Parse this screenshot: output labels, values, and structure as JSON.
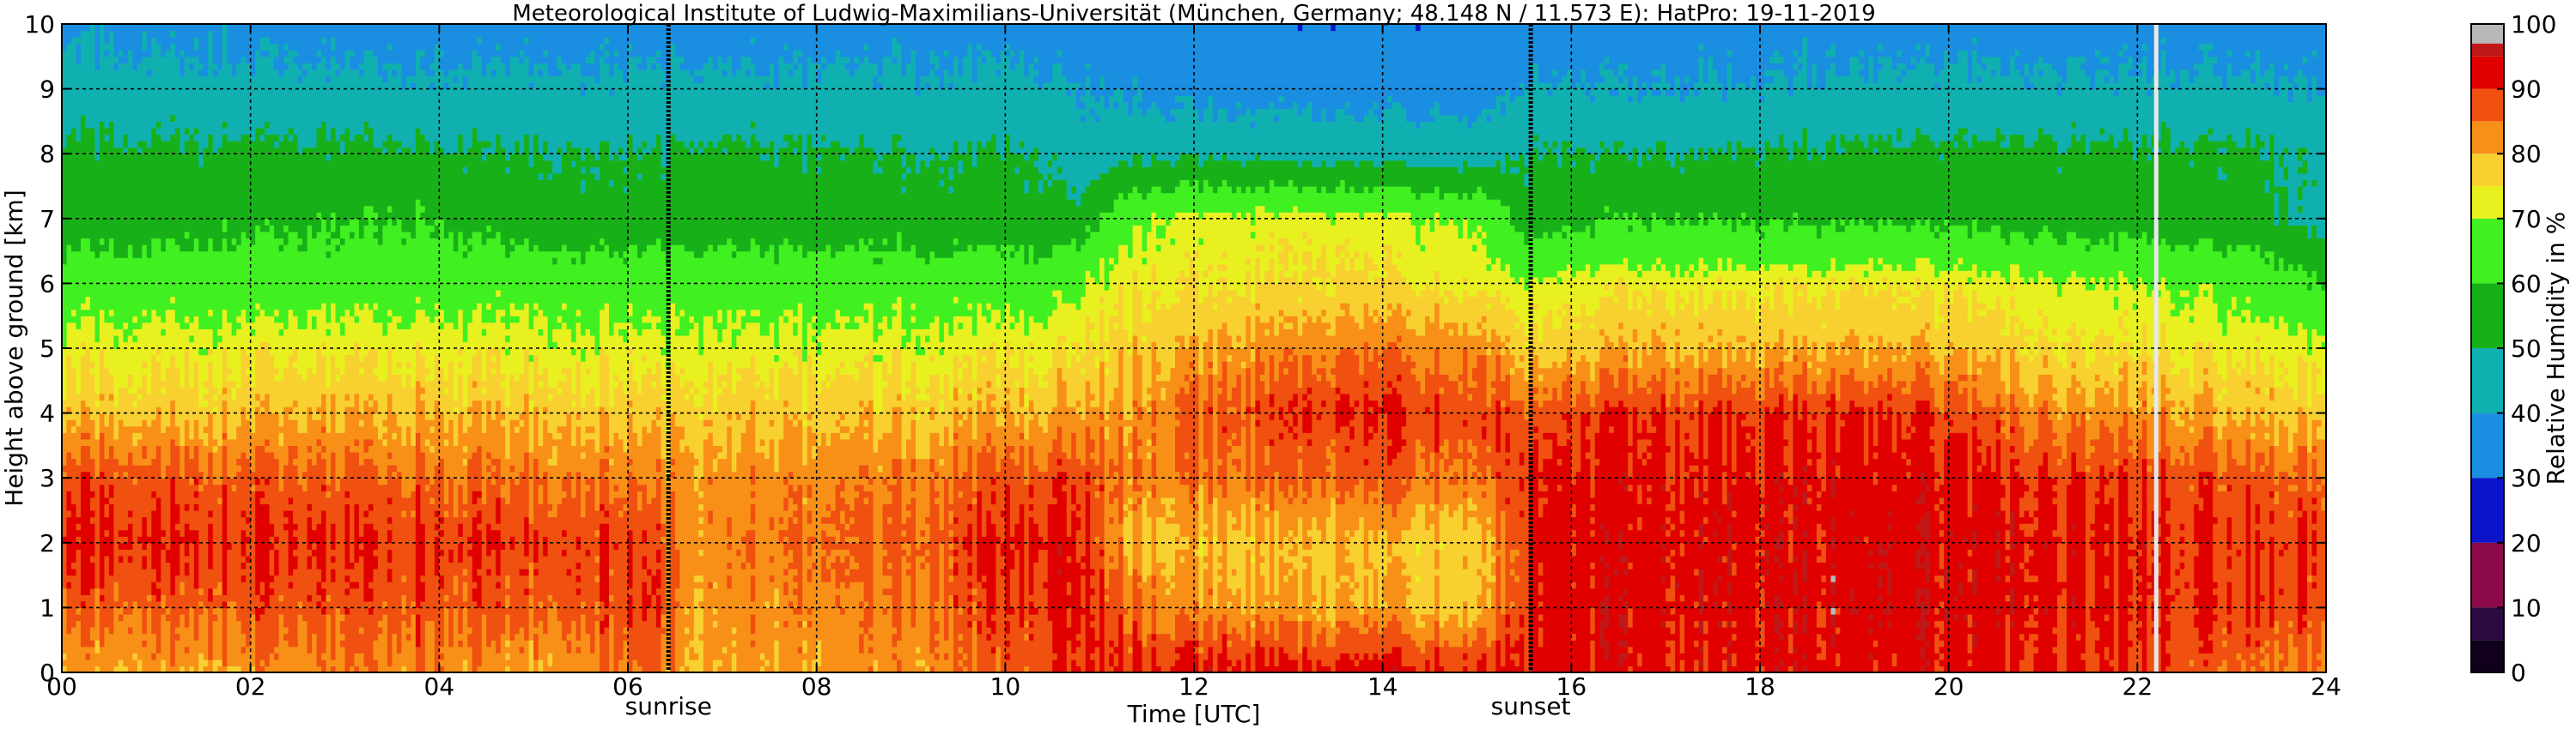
{
  "chart_data": {
    "type": "heatmap",
    "title": "Meteorological Institute of Ludwig-Maximilians-Universität (München, Germany; 48.148 N / 11.573 E):    HatPro: 19-11-2019",
    "xlabel": "Time [UTC]",
    "ylabel": "Height above ground [km]",
    "xlim": [
      0,
      24
    ],
    "ylim": [
      0,
      10
    ],
    "x_ticks": [
      "00",
      "02",
      "04",
      "06",
      "08",
      "10",
      "12",
      "14",
      "16",
      "18",
      "20",
      "22",
      "24"
    ],
    "y_ticks": [
      "0",
      "1",
      "2",
      "3",
      "4",
      "5",
      "6",
      "7",
      "8",
      "9",
      "10"
    ],
    "grid": true,
    "colorbar": {
      "label": "Relative Humidity in %",
      "range": [
        0,
        100
      ],
      "ticks": [
        "0",
        "10",
        "20",
        "30",
        "40",
        "50",
        "60",
        "70",
        "80",
        "90",
        "100"
      ],
      "colors": {
        "0-5": "#10001c",
        "5-10": "#2a0a40",
        "10-20": "#8c0a4a",
        "20-30": "#0a14c8",
        "30-40": "#1a8ee0",
        "40-50": "#10b0b0",
        "50-60": "#18b018",
        "60-70": "#40f020",
        "70-75": "#e8f020",
        "75-80": "#f8d030",
        "80-85": "#f89018",
        "85-90": "#f05010",
        "90-95": "#e00000",
        "95-97": "#c01818",
        "97-100": "#b8b8b8"
      }
    },
    "annotations": [
      {
        "label": "sunrise",
        "time": 6.43
      },
      {
        "label": "sunset",
        "time": 15.57
      }
    ],
    "missing_data_time": 22.2,
    "profiles_keyframes": [
      {
        "time": 0,
        "rh_by_km": [
          80,
          86,
          91,
          88,
          78,
          72,
          66,
          54,
          52,
          44,
          38
        ]
      },
      {
        "time": 3.7,
        "rh_by_km": [
          84,
          88,
          90,
          86,
          80,
          74,
          66,
          60,
          52,
          42,
          36
        ]
      },
      {
        "time": 5,
        "rh_by_km": [
          80,
          86,
          89,
          84,
          78,
          72,
          66,
          54,
          50,
          42,
          36
        ]
      },
      {
        "time": 6.3,
        "rh_by_km": [
          86,
          89,
          89,
          84,
          78,
          72,
          66,
          54,
          50,
          42,
          36
        ]
      },
      {
        "time": 6.6,
        "rh_by_km": [
          80,
          82,
          83,
          82,
          78,
          72,
          66,
          54,
          52,
          42,
          36
        ]
      },
      {
        "time": 9,
        "rh_by_km": [
          82,
          84,
          86,
          84,
          78,
          72,
          66,
          54,
          50,
          42,
          36
        ]
      },
      {
        "time": 10.4,
        "rh_by_km": [
          88,
          90,
          92,
          88,
          80,
          74,
          66,
          54,
          50,
          42,
          36
        ]
      },
      {
        "time": 10.8,
        "rh_by_km": [
          92,
          93,
          92,
          90,
          82,
          76,
          70,
          54,
          44,
          40,
          36
        ]
      },
      {
        "time": 11.3,
        "rh_by_km": [
          91,
          86,
          80,
          84,
          82,
          78,
          74,
          68,
          48,
          38,
          34
        ]
      },
      {
        "time": 12,
        "rh_by_km": [
          92,
          82,
          78,
          84,
          86,
          80,
          74,
          72,
          48,
          36,
          32
        ]
      },
      {
        "time": 13.5,
        "rh_by_km": [
          92,
          80,
          78,
          86,
          90,
          84,
          76,
          72,
          46,
          36,
          32
        ]
      },
      {
        "time": 15,
        "rh_by_km": [
          92,
          80,
          78,
          86,
          90,
          84,
          74,
          70,
          46,
          36,
          32
        ]
      },
      {
        "time": 15.6,
        "rh_by_km": [
          92,
          90,
          90,
          90,
          86,
          76,
          70,
          54,
          50,
          40,
          34
        ]
      },
      {
        "time": 16.5,
        "rh_by_km": [
          92,
          93,
          93,
          92,
          90,
          80,
          74,
          60,
          50,
          40,
          36
        ]
      },
      {
        "time": 19.5,
        "rh_by_km": [
          92,
          93,
          93,
          92,
          90,
          80,
          74,
          58,
          52,
          42,
          36
        ]
      },
      {
        "time": 21,
        "rh_by_km": [
          91,
          92,
          92,
          90,
          84,
          76,
          72,
          56,
          52,
          42,
          36
        ]
      },
      {
        "time": 23.2,
        "rh_by_km": [
          86,
          90,
          90,
          88,
          80,
          74,
          68,
          54,
          52,
          42,
          36
        ]
      },
      {
        "time": 24,
        "rh_by_km": [
          84,
          88,
          90,
          86,
          78,
          72,
          60,
          46,
          48,
          40,
          36
        ]
      }
    ]
  }
}
